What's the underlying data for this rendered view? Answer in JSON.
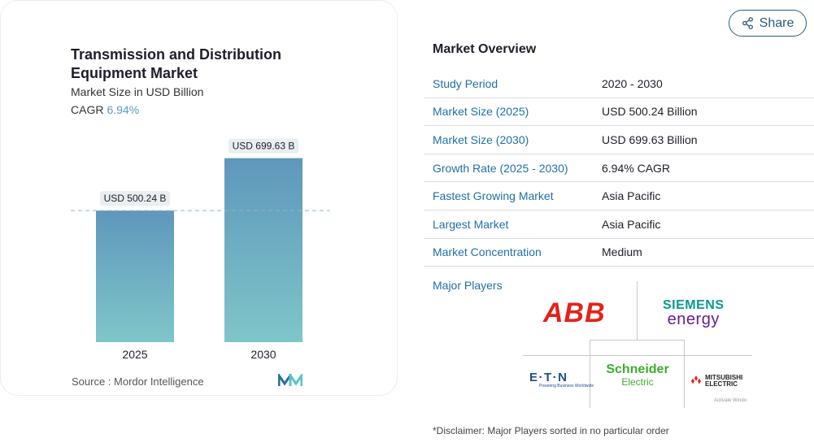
{
  "chart": {
    "title": "Transmission and Distribution Equipment Market",
    "subtitle": "Market Size in USD Billion",
    "cagr_label": "CAGR",
    "cagr_value": "6.94%",
    "source": "Source :  Mordor Intelligence",
    "logo_icon": "mordor-intelligence-logo"
  },
  "chart_data": {
    "type": "bar",
    "categories": [
      "2025",
      "2030"
    ],
    "values": [
      500.24,
      699.63
    ],
    "data_labels": [
      "USD 500.24 B",
      "USD 699.63 B"
    ],
    "ylim": [
      0,
      720
    ],
    "grid": false,
    "reference_line": {
      "value": 500.24,
      "style": "dashed"
    },
    "colors": {
      "bar_top": "#5f97bb",
      "bar_bottom": "#7fc6c9",
      "label_bg": "#e9eef1",
      "ref_line": "#8fb3cc"
    }
  },
  "share": {
    "label": "Share",
    "icon": "share-icon"
  },
  "overview": {
    "title": "Market Overview",
    "rows": [
      {
        "label": "Study Period",
        "value": "2020 - 2030"
      },
      {
        "label": "Market Size (2025)",
        "value": "USD 500.24 Billion"
      },
      {
        "label": "Market Size (2030)",
        "value": "USD 699.63 Billion"
      },
      {
        "label": "Growth Rate (2025 - 2030)",
        "value": "6.94% CAGR"
      },
      {
        "label": "Fastest Growing Market",
        "value": "Asia Pacific"
      },
      {
        "label": "Largest Market",
        "value": "Asia Pacific"
      },
      {
        "label": "Market Concentration",
        "value": "Medium"
      }
    ],
    "major_players_label": "Major Players",
    "players": {
      "abb": "ABB",
      "siemens_1": "SIEMENS",
      "siemens_2": "energy",
      "eaton": "E·T·N",
      "eaton_tag": "Powering Business Worldwide",
      "schneider_1": "Schneider",
      "schneider_2": "Electric",
      "mitsubishi_1": "MITSUBISHI",
      "mitsubishi_2": "ELECTRIC"
    },
    "watermark": "Activate Windo",
    "disclaimer": "*Disclaimer: Major Players sorted in no particular order"
  },
  "theme": {
    "accent": "#2170a6",
    "share_border": "#2d5b7c"
  }
}
